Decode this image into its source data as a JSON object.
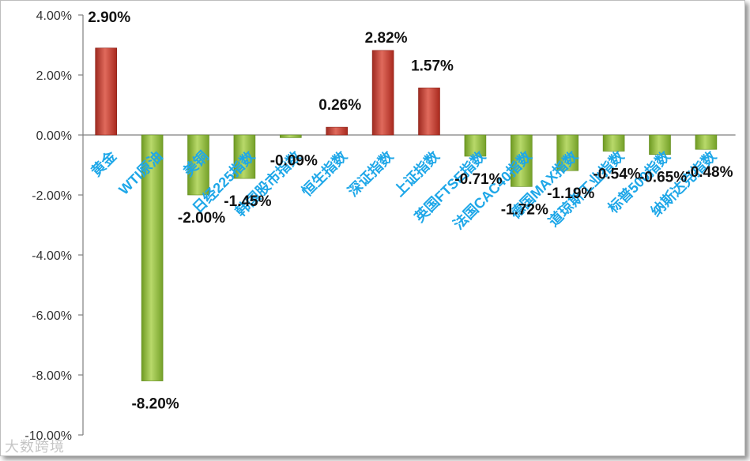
{
  "chart_data": {
    "type": "bar",
    "categories": [
      "黄金",
      "WTI原油",
      "美铜",
      "日经225指数",
      "韩国股市指数",
      "恒生指数",
      "深证指数",
      "上证指数",
      "英国FTSE指数",
      "法国CAC40指数",
      "德国MAX指数",
      "道琼斯工业指数",
      "标普500指数",
      "纳斯达克指数"
    ],
    "values": [
      2.9,
      -8.2,
      -2.0,
      -1.45,
      -0.09,
      0.26,
      2.82,
      1.57,
      -0.71,
      -1.72,
      -1.19,
      -0.54,
      -0.65,
      -0.48
    ],
    "data_labels": [
      "2.90%",
      "-8.20%",
      "-2.00%",
      "-1.45%",
      "-0.09%",
      "0.26%",
      "2.82%",
      "1.57%",
      "-0.71%",
      "-1.72%",
      "-1.19%",
      "-0.54%",
      "-0.65%",
      "-0.48%"
    ],
    "yticks": [
      4,
      2,
      0,
      -2,
      -4,
      -6,
      -8,
      -10
    ],
    "ytick_labels": [
      "4.00%",
      "2.00%",
      "0.00%",
      "-2.00%",
      "-4.00%",
      "-6.00%",
      "-8.00%",
      "-10.00%"
    ],
    "ylim": [
      -10,
      4
    ],
    "grid": false,
    "colors": {
      "positive": "#c0392b",
      "positive_light": "#e57a6e",
      "negative": "#8fb83a",
      "negative_light": "#c2dc7a",
      "category_label": "#1ea7e8",
      "axis": "#7f7f7f"
    }
  },
  "watermark": "大数跨境"
}
